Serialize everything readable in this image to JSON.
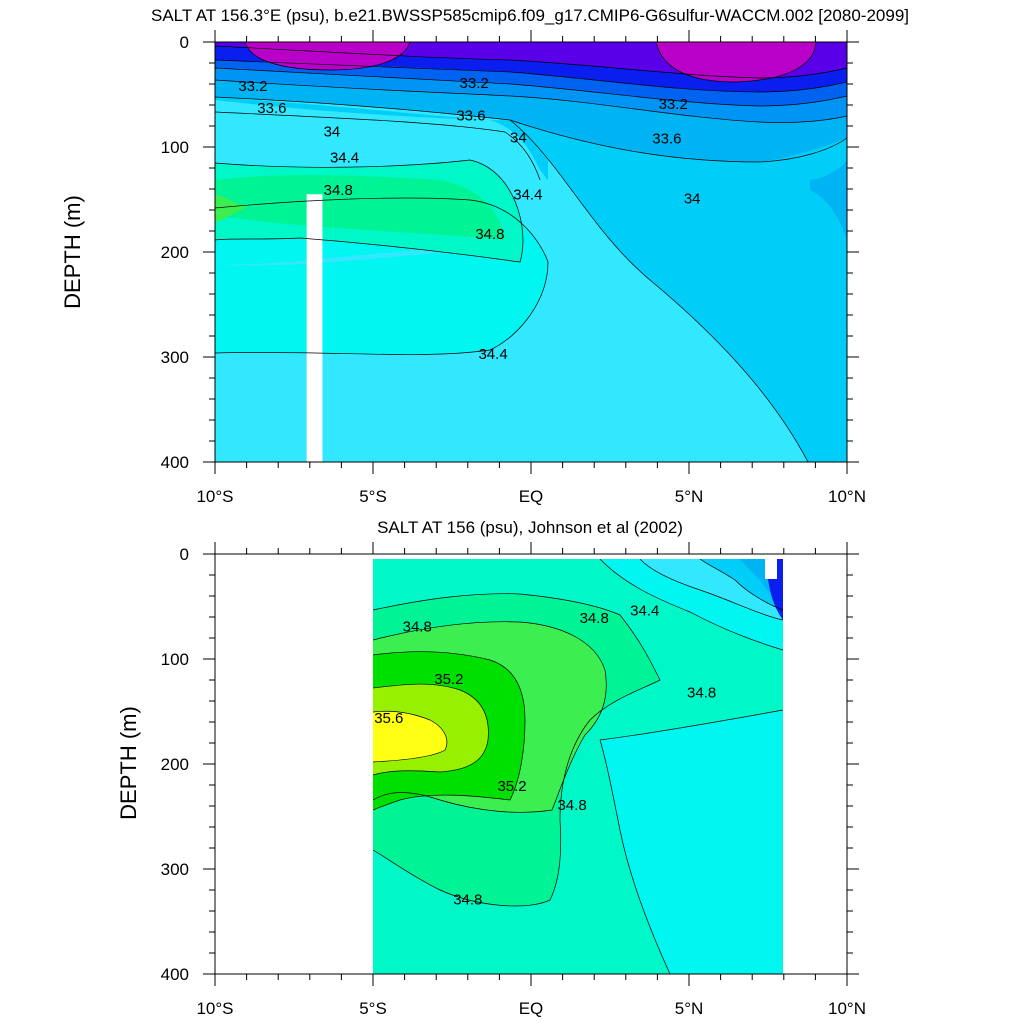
{
  "chart_data": [
    {
      "type": "filled-contour",
      "title": "SALT AT 156.3°E (psu), b.e21.BWSSP585cmip6.f09_g17.CMIP6-G6sulfur-WACCM.002 [2080-2099]",
      "ylabel": "DEPTH (m)",
      "xlim": [
        -10,
        10
      ],
      "ylim": [
        0,
        400
      ],
      "y_reversed": true,
      "x_ticks": [
        -10,
        -5,
        0,
        5,
        10
      ],
      "x_tick_labels": [
        "10°S",
        "5°S",
        "EQ",
        "5°N",
        "10°N"
      ],
      "y_ticks": [
        0,
        100,
        200,
        300,
        400
      ],
      "y_tick_labels": [
        "0",
        "100",
        "200",
        "300",
        "400"
      ],
      "data_x_range": [
        -10,
        10
      ],
      "missing_column": {
        "x": [
          -7.1,
          -6.6
        ],
        "depth_from": 145,
        "depth_to": 400
      },
      "colors": {
        "lt33": "#b800c8",
        "33_33.2": "#5a00e8",
        "33.2_33.4": "#0a1ef0",
        "33.4_33.6": "#0062f0",
        "33.6_33.8": "#0094f4",
        "33.8_34": "#00b4f4",
        "34_34.2": "#00cef8",
        "34.2_34.4": "#32e8ff",
        "34.4_34.6": "#00f6f0",
        "34.6_34.8": "#00f8c8",
        "34.8_35": "#00f496",
        "35_35.2": "#3cee50"
      },
      "contour_labels": [
        {
          "text": "33.2",
          "x": -8.8,
          "y": 43
        },
        {
          "text": "33.2",
          "x": -1.8,
          "y": 40
        },
        {
          "text": "33.2",
          "x": 4.5,
          "y": 60
        },
        {
          "text": "33.6",
          "x": -8.2,
          "y": 64
        },
        {
          "text": "33.6",
          "x": -1.9,
          "y": 71
        },
        {
          "text": "33.6",
          "x": 4.3,
          "y": 93
        },
        {
          "text": "34",
          "x": -6.3,
          "y": 86
        },
        {
          "text": "34",
          "x": -0.4,
          "y": 92
        },
        {
          "text": "34",
          "x": 5.1,
          "y": 150
        },
        {
          "text": "34.4",
          "x": -5.9,
          "y": 111
        },
        {
          "text": "34.4",
          "x": -0.1,
          "y": 146
        },
        {
          "text": "34.4",
          "x": -1.2,
          "y": 298
        },
        {
          "text": "34.8",
          "x": -6.1,
          "y": 142
        },
        {
          "text": "34.8",
          "x": -1.3,
          "y": 184
        }
      ]
    },
    {
      "type": "filled-contour",
      "title": "SALT AT 156 (psu), Johnson et al (2002)",
      "ylabel": "DEPTH (m)",
      "xlim": [
        -10,
        10
      ],
      "ylim": [
        0,
        400
      ],
      "y_reversed": true,
      "x_ticks": [
        -10,
        -5,
        0,
        5,
        10
      ],
      "x_tick_labels": [
        "10°S",
        "5°S",
        "EQ",
        "5°N",
        "10°N"
      ],
      "y_ticks": [
        0,
        100,
        200,
        300,
        400
      ],
      "y_tick_labels": [
        "0",
        "100",
        "200",
        "300",
        "400"
      ],
      "data_x_range": [
        -5,
        8
      ],
      "colors": {
        "33.8_34": "#00b4f4",
        "34_34.2": "#00cef8",
        "34.2_34.4": "#32e8ff",
        "34.4_34.6": "#00f6f0",
        "34.6_34.8": "#00f8c8",
        "34.8_35": "#00f496",
        "35_35.2": "#3cee50",
        "35.2_35.4": "#00e000",
        "35.4_35.6": "#96f000",
        "gt35.6": "#ffff14",
        "lt33.8": "#0a1ef0"
      },
      "contour_labels": [
        {
          "text": "34.8",
          "x": -3.6,
          "y": 70
        },
        {
          "text": "34.8",
          "x": 2.0,
          "y": 62
        },
        {
          "text": "34.4",
          "x": 3.6,
          "y": 55
        },
        {
          "text": "35.2",
          "x": -2.6,
          "y": 120
        },
        {
          "text": "35.6",
          "x": -4.5,
          "y": 157
        },
        {
          "text": "35.2",
          "x": -0.6,
          "y": 222
        },
        {
          "text": "34.8",
          "x": 1.3,
          "y": 240
        },
        {
          "text": "34.8",
          "x": 5.4,
          "y": 133
        },
        {
          "text": "34.8",
          "x": -2.0,
          "y": 330
        }
      ]
    }
  ]
}
